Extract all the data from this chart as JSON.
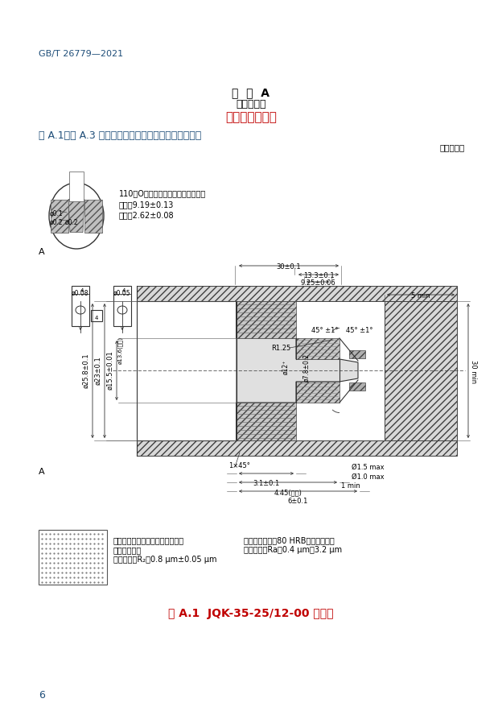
{
  "bg_color": "#ffffff",
  "page_width": 6.24,
  "page_height": 8.83,
  "header_text": "GB/T 26779—2021",
  "header_color": "#1f4e79",
  "annex_title": "附  录  A",
  "annex_subtitle": "（规范性）",
  "annex_content": "加氢口结构型式",
  "annex_title_color": "#000000",
  "annex_content_color": "#c00000",
  "intro_text": "图 A.1～图 A.3 规定了不同压力下加氢口的结构型式。",
  "intro_color": "#1f4e79",
  "unit_text": "单位为毫米",
  "oring_note_line1": "110号O圈模具的封面参考尺寸如下：",
  "oring_note_line2": "内径：9.19±0.13",
  "oring_note_line3": "宽度：2.62±0.08",
  "caption_text": "图 A.1  JQK-35-25/12-00 加氢口",
  "caption_color": "#c00000",
  "legend_text1a": "此图涂色区域表示该处涂层密封元",
  "legend_text1b": "件以外部件。",
  "legend_text1c": "表面精糙度R₂：0.8 μm±0.05 μm",
  "legend_text2a": "材料硬度：最小80 HRB（洛氏硬度）",
  "legend_text2b": "表面精糙度Ra：0.4 μm～3.2 μm",
  "footer_page": "6"
}
